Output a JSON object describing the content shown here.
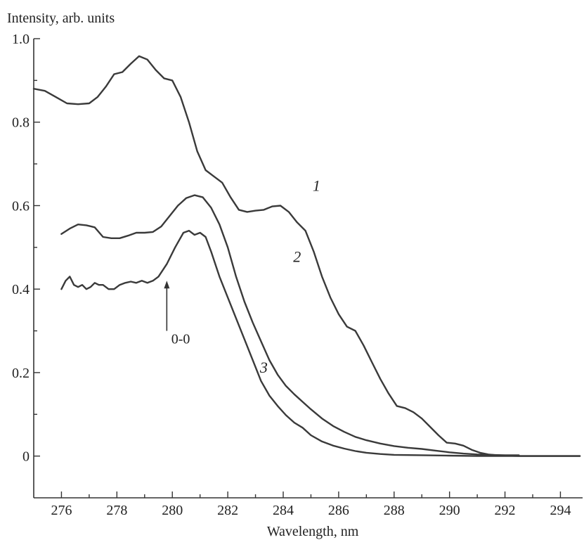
{
  "chart_data": {
    "type": "line",
    "title": "",
    "xlabel": "Wavelength, nm",
    "ylabel": "Intensity, arb. units",
    "xlim": [
      275,
      294.8
    ],
    "ylim": [
      -0.1,
      1.0
    ],
    "grid": false,
    "x_ticks": [
      "276",
      "278",
      "280",
      "282",
      "284",
      "286",
      "288",
      "290",
      "292",
      "294"
    ],
    "x_tick_values": [
      276,
      278,
      280,
      282,
      284,
      286,
      288,
      290,
      292,
      294
    ],
    "y_ticks": [
      "0",
      "0.2",
      "0.4",
      "0.6",
      "0.8",
      "1.0"
    ],
    "y_tick_values": [
      0,
      0.2,
      0.4,
      0.6,
      0.8,
      1.0
    ],
    "series": [
      {
        "name": "1",
        "x": [
          275.0,
          275.4,
          275.8,
          276.2,
          276.6,
          277.0,
          277.3,
          277.6,
          277.9,
          278.2,
          278.5,
          278.8,
          279.1,
          279.4,
          279.7,
          280.0,
          280.3,
          280.6,
          280.9,
          281.2,
          281.5,
          281.8,
          282.1,
          282.4,
          282.7,
          283.0,
          283.3,
          283.6,
          283.9,
          284.2,
          284.5,
          284.8,
          285.1,
          285.4,
          285.7,
          286.0,
          286.3,
          286.6,
          286.9,
          287.2,
          287.5,
          287.8,
          288.1,
          288.4,
          288.7,
          289.0,
          289.3,
          289.6,
          289.9,
          290.2,
          290.5,
          290.8,
          291.1,
          291.4,
          291.7,
          292.0,
          292.5,
          293.0,
          294.7
        ],
        "y": [
          0.88,
          0.875,
          0.86,
          0.845,
          0.843,
          0.845,
          0.86,
          0.885,
          0.915,
          0.92,
          0.94,
          0.958,
          0.95,
          0.925,
          0.905,
          0.9,
          0.86,
          0.8,
          0.73,
          0.685,
          0.67,
          0.655,
          0.62,
          0.59,
          0.585,
          0.588,
          0.59,
          0.598,
          0.6,
          0.585,
          0.56,
          0.54,
          0.49,
          0.43,
          0.38,
          0.34,
          0.31,
          0.3,
          0.265,
          0.225,
          0.185,
          0.15,
          0.12,
          0.115,
          0.105,
          0.09,
          0.07,
          0.05,
          0.032,
          0.03,
          0.025,
          0.015,
          0.008,
          0.004,
          0.002,
          0.001,
          0.0,
          0.0,
          0.0
        ]
      },
      {
        "name": "2",
        "x": [
          276.0,
          276.3,
          276.6,
          276.9,
          277.2,
          277.5,
          277.8,
          278.1,
          278.4,
          278.7,
          279.0,
          279.3,
          279.6,
          279.9,
          280.2,
          280.5,
          280.8,
          281.1,
          281.4,
          281.7,
          282.0,
          282.3,
          282.6,
          282.9,
          283.2,
          283.5,
          283.8,
          284.1,
          284.4,
          284.7,
          285.0,
          285.4,
          285.8,
          286.2,
          286.6,
          287.0,
          287.5,
          288.0,
          288.5,
          289.0,
          289.5,
          290.0,
          290.5,
          291.0,
          291.5,
          292.0,
          292.5
        ],
        "y": [
          0.532,
          0.545,
          0.555,
          0.553,
          0.548,
          0.525,
          0.522,
          0.522,
          0.528,
          0.535,
          0.535,
          0.537,
          0.55,
          0.575,
          0.6,
          0.618,
          0.625,
          0.62,
          0.595,
          0.555,
          0.5,
          0.43,
          0.37,
          0.32,
          0.275,
          0.23,
          0.195,
          0.168,
          0.148,
          0.13,
          0.112,
          0.09,
          0.072,
          0.058,
          0.046,
          0.038,
          0.03,
          0.024,
          0.02,
          0.017,
          0.013,
          0.009,
          0.006,
          0.004,
          0.003,
          0.002,
          0.002
        ]
      },
      {
        "name": "3",
        "x": [
          276.0,
          276.15,
          276.3,
          276.45,
          276.6,
          276.75,
          276.9,
          277.05,
          277.2,
          277.35,
          277.5,
          277.7,
          277.9,
          278.1,
          278.3,
          278.5,
          278.7,
          278.9,
          279.1,
          279.3,
          279.5,
          279.8,
          280.1,
          280.4,
          280.6,
          280.8,
          281.0,
          281.2,
          281.4,
          281.7,
          282.0,
          282.3,
          282.6,
          282.9,
          283.2,
          283.5,
          283.8,
          284.1,
          284.4,
          284.7,
          285.0,
          285.4,
          285.8,
          286.2,
          286.6,
          287.0,
          287.5,
          288.0,
          289.0,
          290.0,
          291.0,
          292.0,
          294.7
        ],
        "y": [
          0.4,
          0.42,
          0.43,
          0.41,
          0.405,
          0.41,
          0.4,
          0.405,
          0.415,
          0.41,
          0.41,
          0.4,
          0.4,
          0.41,
          0.415,
          0.418,
          0.415,
          0.42,
          0.415,
          0.42,
          0.43,
          0.46,
          0.5,
          0.535,
          0.54,
          0.53,
          0.535,
          0.525,
          0.49,
          0.43,
          0.38,
          0.33,
          0.28,
          0.23,
          0.18,
          0.145,
          0.12,
          0.098,
          0.08,
          0.068,
          0.05,
          0.035,
          0.025,
          0.018,
          0.012,
          0.008,
          0.005,
          0.003,
          0.002,
          0.001,
          0.0,
          0.0,
          0.0
        ]
      }
    ],
    "curve_labels": [
      {
        "text": "1",
        "x": 285.2,
        "y": 0.635
      },
      {
        "text": "2",
        "x": 284.5,
        "y": 0.465
      },
      {
        "text": "3",
        "x": 283.3,
        "y": 0.2
      }
    ],
    "annotations": [
      {
        "text": "0-0",
        "x": 280.3,
        "y": 0.27,
        "arrow_from_y": 0.3,
        "arrow_to_y": 0.42,
        "arrow_x": 279.8
      }
    ]
  }
}
